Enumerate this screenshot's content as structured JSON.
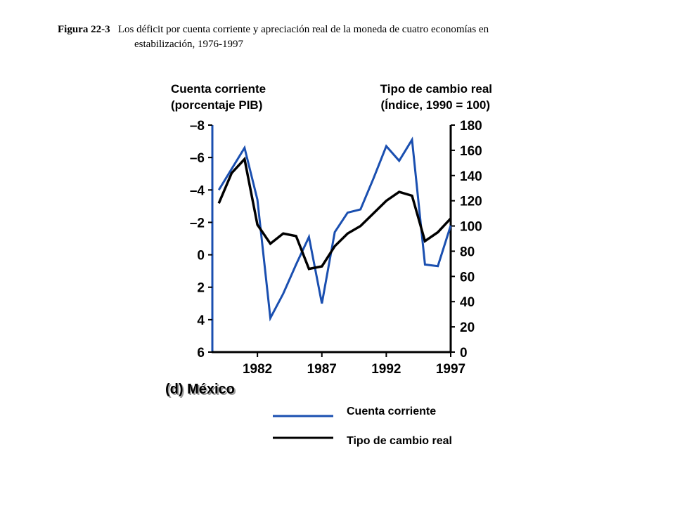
{
  "caption": {
    "label": "Figura 22-3",
    "text_line1": "Los déficit por cuenta corriente y apreciación real de la moneda de cuatro economías en",
    "text_line2": "estabilización, 1976-1997"
  },
  "chart_data": {
    "type": "line",
    "panel_label": "(d) México",
    "left_axis": {
      "title_line1": "Cuenta corriente",
      "title_line2": "(porcentaje PIB)",
      "range": [
        -8,
        6
      ],
      "inverted": true,
      "ticks": [
        "–8",
        "–6",
        "–4",
        "–2",
        "0",
        "2",
        "4",
        "6"
      ]
    },
    "right_axis": {
      "title_line1": "Tipo de cambio real",
      "title_line2": "(Índice, 1990 = 100)",
      "range": [
        0,
        180
      ],
      "ticks": [
        "180",
        "160",
        "140",
        "120",
        "100",
        "80",
        "60",
        "40",
        "20",
        "0"
      ]
    },
    "x_axis": {
      "range": [
        1978.5,
        1997
      ],
      "ticks": [
        "1982",
        "1987",
        "1992",
        "1997"
      ]
    },
    "series": [
      {
        "name": "Cuenta corriente",
        "axis": "left",
        "color": "#1a4fb0",
        "x": [
          1979,
          1980,
          1981,
          1982,
          1983,
          1984,
          1985,
          1986,
          1987,
          1988,
          1989,
          1990,
          1991,
          1992,
          1993,
          1994,
          1995,
          1996,
          1997
        ],
        "values": [
          -4.0,
          -5.3,
          -6.6,
          -3.4,
          3.9,
          2.4,
          0.6,
          -1.1,
          3.0,
          -1.4,
          -2.6,
          -2.8,
          -4.7,
          -6.7,
          -5.8,
          -7.1,
          0.6,
          0.7,
          -1.8
        ]
      },
      {
        "name": "Tipo de cambio real",
        "axis": "right",
        "color": "#000000",
        "x": [
          1979,
          1980,
          1981,
          1982,
          1983,
          1984,
          1985,
          1986,
          1987,
          1988,
          1989,
          1990,
          1991,
          1992,
          1993,
          1994,
          1995,
          1996,
          1997
        ],
        "values": [
          118,
          142,
          153,
          101,
          86,
          94,
          92,
          66,
          68,
          84,
          94,
          100,
          110,
          120,
          127,
          124,
          88,
          95,
          106
        ]
      }
    ]
  },
  "legend": {
    "items": [
      {
        "label": "Cuenta corriente",
        "color": "#1a4fb0"
      },
      {
        "label": "Tipo de cambio real",
        "color": "#000000"
      }
    ]
  }
}
